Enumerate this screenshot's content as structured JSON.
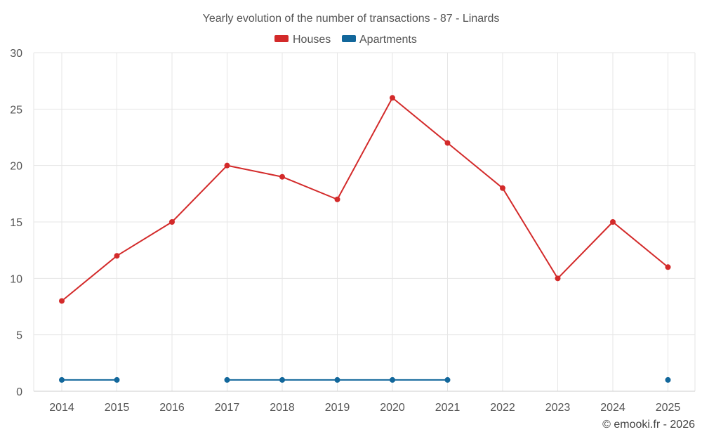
{
  "credit": "© emooki.fr - 2026",
  "colors": {
    "houses": "#d32a2a",
    "apartments": "#12679b"
  },
  "chart_data": {
    "type": "line",
    "title": "Yearly evolution of the number of transactions - 87 - Linards",
    "xlabel": "",
    "ylabel": "",
    "categories": [
      "2014",
      "2015",
      "2016",
      "2017",
      "2018",
      "2019",
      "2020",
      "2021",
      "2022",
      "2023",
      "2024",
      "2025"
    ],
    "ylim": [
      0,
      30
    ],
    "yticks": [
      0,
      5,
      10,
      15,
      20,
      25,
      30
    ],
    "grid": true,
    "legend_position": "top-center",
    "series": [
      {
        "name": "Houses",
        "color_key": "houses",
        "values": [
          8,
          12,
          15,
          20,
          19,
          17,
          26,
          22,
          18,
          10,
          15,
          11
        ]
      },
      {
        "name": "Apartments",
        "color_key": "apartments",
        "values": [
          1,
          1,
          null,
          1,
          1,
          1,
          1,
          1,
          null,
          null,
          null,
          1
        ]
      }
    ]
  }
}
